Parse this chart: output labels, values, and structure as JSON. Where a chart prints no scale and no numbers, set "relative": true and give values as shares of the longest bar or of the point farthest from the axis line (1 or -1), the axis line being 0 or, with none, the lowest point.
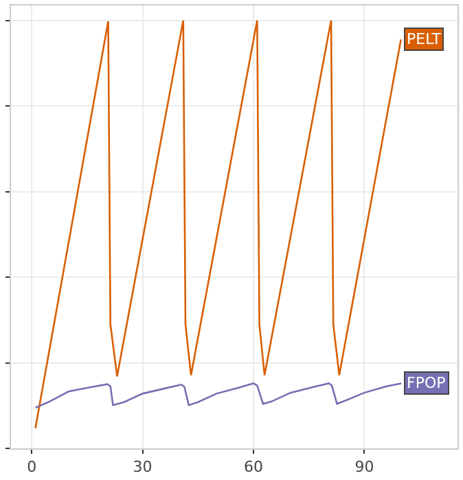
{
  "chart_data": {
    "type": "line",
    "relative": true,
    "xlim": [
      -5.6,
      115.2
    ],
    "xticks": [
      0,
      30,
      60,
      90
    ],
    "grid": true,
    "legend": false,
    "tick_labels": "x",
    "marker": "none",
    "line_style": "solid",
    "series": [
      {
        "name": "PELT",
        "color": "#d95f02",
        "x": [
          1,
          20.7,
          21.3,
          23.1,
          41,
          41.6,
          43.1,
          61,
          61.6,
          63,
          81,
          81.6,
          83.2,
          99.9
        ],
        "values": [
          0.047,
          0.998,
          0.29,
          0.168,
          1.0,
          0.29,
          0.171,
          1.0,
          0.29,
          0.171,
          1.0,
          0.29,
          0.171,
          0.956
        ]
      },
      {
        "name": "FPOP",
        "color": "#7570b3",
        "x": [
          1,
          4.5,
          10,
          16,
          20.5,
          21.3,
          22,
          25,
          30,
          36,
          40.5,
          41.3,
          42.5,
          45,
          50,
          56,
          60,
          61,
          62.6,
          65,
          70,
          76,
          80.4,
          81.2,
          82.6,
          85,
          90,
          96,
          100
        ],
        "values": [
          0.095,
          0.108,
          0.133,
          0.143,
          0.15,
          0.145,
          0.101,
          0.108,
          0.128,
          0.14,
          0.149,
          0.144,
          0.101,
          0.108,
          0.128,
          0.142,
          0.152,
          0.147,
          0.104,
          0.11,
          0.13,
          0.143,
          0.152,
          0.147,
          0.104,
          0.112,
          0.13,
          0.145,
          0.152
        ]
      }
    ]
  }
}
